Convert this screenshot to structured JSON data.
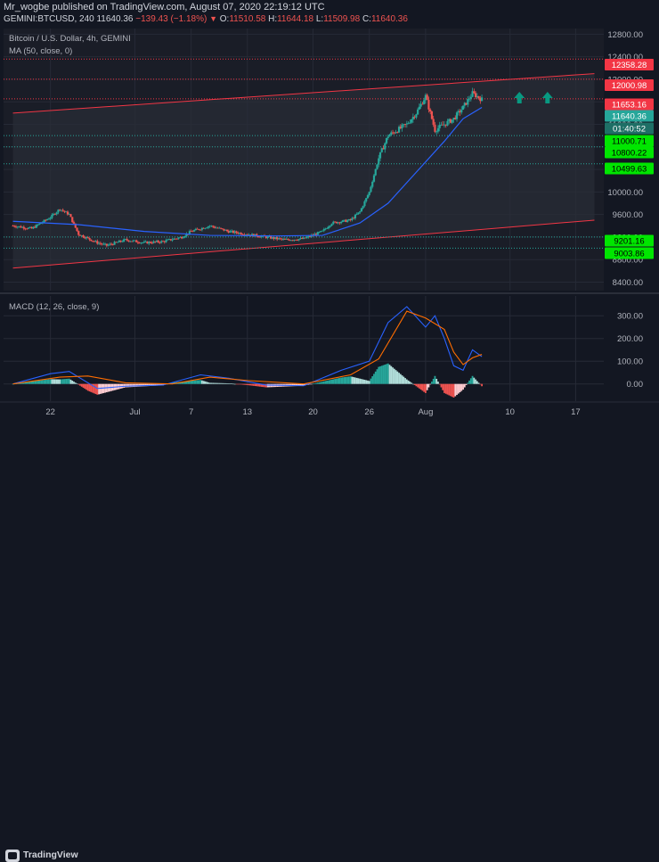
{
  "header": {
    "publisher": "Mr_wogbe published on TradingView.com, August 07, 2020 22:19:12 UTC",
    "symbol": "GEMINI:BTCUSD, 240",
    "last": "11640.36",
    "change": "−139.43 (−1.18%)",
    "o_label": "O:",
    "o_value": "11510.58",
    "h_label": "H:",
    "h_value": "11644.18",
    "l_label": "L:",
    "l_value": "11509.98",
    "c_label": "C:",
    "c_value": "11640.36"
  },
  "main_pane": {
    "title": "Bitcoin / U.S. Dollar, 4h, GEMINI",
    "indicator": "MA (50, close, 0)"
  },
  "macd_pane": {
    "title": "MACD (12, 26, close, 9)"
  },
  "footer": {
    "brand": "TradingView"
  },
  "colors": {
    "background": "#131722",
    "channel": "#f23645",
    "support": "#26a69a",
    "up": "#26a69a",
    "down": "#ef5350",
    "ma": "#2962ff",
    "macd_line": "#2962ff",
    "signal_line": "#ff6d00",
    "arrow": "#089981"
  },
  "chart_data": [
    {
      "type": "line",
      "title": "Bitcoin / U.S. Dollar, 4h, GEMINI",
      "x_ticks": [
        "22",
        "Jul",
        "7",
        "13",
        "20",
        "26",
        "Aug",
        "10",
        "17"
      ],
      "y_ticks": [
        12800,
        12400,
        12000,
        11600,
        11200,
        10800,
        10400,
        10000,
        9600,
        9200,
        8800,
        8400
      ],
      "ylim": [
        8250,
        12900
      ],
      "grid": true,
      "price_close": [
        {
          "x": "2020-06-18",
          "y": 9400
        },
        {
          "x": "2020-06-20",
          "y": 9350
        },
        {
          "x": "2020-06-22",
          "y": 9550
        },
        {
          "x": "2020-06-23",
          "y": 9700
        },
        {
          "x": "2020-06-24",
          "y": 9600
        },
        {
          "x": "2020-06-25",
          "y": 9250
        },
        {
          "x": "2020-06-27",
          "y": 9100
        },
        {
          "x": "2020-06-28",
          "y": 9050
        },
        {
          "x": "2020-06-30",
          "y": 9150
        },
        {
          "x": "2020-07-02",
          "y": 9100
        },
        {
          "x": "2020-07-04",
          "y": 9120
        },
        {
          "x": "2020-07-06",
          "y": 9200
        },
        {
          "x": "2020-07-07",
          "y": 9300
        },
        {
          "x": "2020-07-09",
          "y": 9400
        },
        {
          "x": "2020-07-11",
          "y": 9300
        },
        {
          "x": "2020-07-13",
          "y": 9250
        },
        {
          "x": "2020-07-15",
          "y": 9200
        },
        {
          "x": "2020-07-17",
          "y": 9150
        },
        {
          "x": "2020-07-19",
          "y": 9170
        },
        {
          "x": "2020-07-21",
          "y": 9300
        },
        {
          "x": "2020-07-22",
          "y": 9450
        },
        {
          "x": "2020-07-24",
          "y": 9500
        },
        {
          "x": "2020-07-25",
          "y": 9650
        },
        {
          "x": "2020-07-26",
          "y": 10000
        },
        {
          "x": "2020-07-27",
          "y": 10600
        },
        {
          "x": "2020-07-28",
          "y": 11000
        },
        {
          "x": "2020-07-29",
          "y": 11100
        },
        {
          "x": "2020-07-30",
          "y": 11200
        },
        {
          "x": "2020-07-31",
          "y": 11400
        },
        {
          "x": "2020-08-01",
          "y": 11700
        },
        {
          "x": "2020-08-02",
          "y": 11100
        },
        {
          "x": "2020-08-03",
          "y": 11200
        },
        {
          "x": "2020-08-04",
          "y": 11300
        },
        {
          "x": "2020-08-05",
          "y": 11500
        },
        {
          "x": "2020-08-06",
          "y": 11750
        },
        {
          "x": "2020-08-07",
          "y": 11640
        }
      ],
      "ma50": [
        {
          "x": "2020-06-18",
          "y": 9480
        },
        {
          "x": "2020-06-25",
          "y": 9420
        },
        {
          "x": "2020-07-02",
          "y": 9300
        },
        {
          "x": "2020-07-09",
          "y": 9230
        },
        {
          "x": "2020-07-16",
          "y": 9220
        },
        {
          "x": "2020-07-21",
          "y": 9230
        },
        {
          "x": "2020-07-25",
          "y": 9450
        },
        {
          "x": "2020-07-28",
          "y": 9800
        },
        {
          "x": "2020-07-31",
          "y": 10350
        },
        {
          "x": "2020-08-03",
          "y": 10900
        },
        {
          "x": "2020-08-05",
          "y": 11300
        },
        {
          "x": "2020-08-07",
          "y": 11500
        }
      ],
      "channel": {
        "upper": [
          {
            "x": "2020-06-18",
            "y": 11400
          },
          {
            "x": "2020-08-19",
            "y": 12100
          }
        ],
        "lower": [
          {
            "x": "2020-06-18",
            "y": 8650
          },
          {
            "x": "2020-08-19",
            "y": 9500
          }
        ]
      },
      "price_levels": [
        {
          "label": "12358.28",
          "kind": "resistance"
        },
        {
          "label": "12000.98",
          "kind": "resistance"
        },
        {
          "label": "11653.16",
          "kind": "resistance"
        },
        {
          "label": "11640.36",
          "kind": "last"
        },
        {
          "label": "01:40:52",
          "kind": "countdown"
        },
        {
          "label": "11000.71",
          "kind": "support"
        },
        {
          "label": "10800.22",
          "kind": "support"
        },
        {
          "label": "10499.63",
          "kind": "support"
        },
        {
          "label": "9201.16",
          "kind": "support"
        },
        {
          "label": "9003.86",
          "kind": "support"
        }
      ],
      "annotations": [
        {
          "type": "arrow-up",
          "x": "2020-08-11"
        },
        {
          "type": "arrow-up",
          "x": "2020-08-14"
        }
      ]
    },
    {
      "type": "line",
      "title": "MACD (12, 26, close, 9)",
      "y_ticks": [
        300,
        200,
        100,
        0
      ],
      "y_tick_labels": [
        "300.00",
        "200.00",
        "100.00",
        "0.00"
      ],
      "ylim": [
        -60,
        340
      ],
      "macd": [
        {
          "x": "2020-06-18",
          "y": 0
        },
        {
          "x": "2020-06-22",
          "y": 45
        },
        {
          "x": "2020-06-24",
          "y": 55
        },
        {
          "x": "2020-06-27",
          "y": -20
        },
        {
          "x": "2020-06-30",
          "y": -10
        },
        {
          "x": "2020-07-04",
          "y": -5
        },
        {
          "x": "2020-07-08",
          "y": 40
        },
        {
          "x": "2020-07-11",
          "y": 25
        },
        {
          "x": "2020-07-15",
          "y": -5
        },
        {
          "x": "2020-07-19",
          "y": -8
        },
        {
          "x": "2020-07-23",
          "y": 60
        },
        {
          "x": "2020-07-26",
          "y": 100
        },
        {
          "x": "2020-07-28",
          "y": 270
        },
        {
          "x": "2020-07-30",
          "y": 340
        },
        {
          "x": "2020-08-01",
          "y": 250
        },
        {
          "x": "2020-08-02",
          "y": 300
        },
        {
          "x": "2020-08-03",
          "y": 200
        },
        {
          "x": "2020-08-04",
          "y": 80
        },
        {
          "x": "2020-08-05",
          "y": 60
        },
        {
          "x": "2020-08-06",
          "y": 150
        },
        {
          "x": "2020-08-07",
          "y": 120
        }
      ],
      "signal": [
        {
          "x": "2020-06-18",
          "y": 0
        },
        {
          "x": "2020-06-23",
          "y": 30
        },
        {
          "x": "2020-06-26",
          "y": 35
        },
        {
          "x": "2020-06-30",
          "y": 5
        },
        {
          "x": "2020-07-05",
          "y": 0
        },
        {
          "x": "2020-07-09",
          "y": 30
        },
        {
          "x": "2020-07-13",
          "y": 15
        },
        {
          "x": "2020-07-19",
          "y": 0
        },
        {
          "x": "2020-07-24",
          "y": 40
        },
        {
          "x": "2020-07-27",
          "y": 110
        },
        {
          "x": "2020-07-30",
          "y": 320
        },
        {
          "x": "2020-08-01",
          "y": 290
        },
        {
          "x": "2020-08-03",
          "y": 240
        },
        {
          "x": "2020-08-04",
          "y": 140
        },
        {
          "x": "2020-08-05",
          "y": 85
        },
        {
          "x": "2020-08-06",
          "y": 115
        },
        {
          "x": "2020-08-07",
          "y": 130
        }
      ]
    }
  ]
}
